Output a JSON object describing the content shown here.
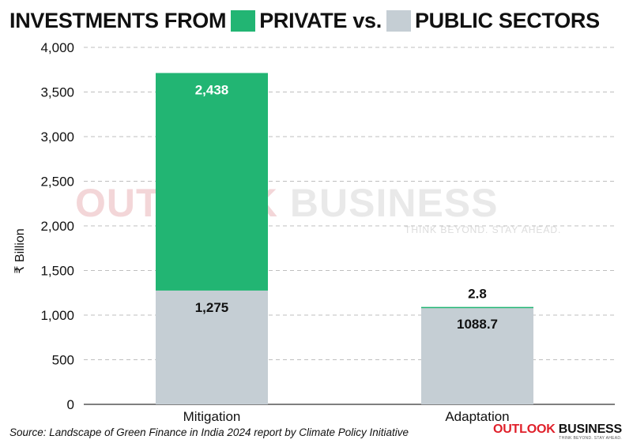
{
  "title": {
    "part1": "INVESTMENTS FROM",
    "part2": "PRIVATE vs.",
    "part3": "PUBLIC SECTORS"
  },
  "colors": {
    "private": "#22b573",
    "public": "#c5ced4",
    "text": "#111111",
    "grid": "#bfbfbf",
    "brand_red": "#e0202a"
  },
  "chart_data": {
    "type": "bar",
    "stacked": true,
    "categories": [
      "Mitigation",
      "Adaptation"
    ],
    "series": [
      {
        "color": "#c5ced4",
        "values": [
          1275,
          1088.7
        ],
        "labels": [
          "1,275",
          "1088.7"
        ]
      },
      {
        "color": "#22b573",
        "values": [
          2438,
          2.8
        ],
        "labels": [
          "2,438",
          "2.8"
        ]
      }
    ],
    "ylabel": "₹ Billion",
    "xlabel": "",
    "ylim": [
      0,
      4000
    ],
    "yticks": [
      0,
      500,
      1000,
      1500,
      2000,
      2500,
      3000,
      3500,
      4000
    ],
    "ytick_labels": [
      "0",
      "500",
      "1,000",
      "1,500",
      "2,000",
      "2,500",
      "3,000",
      "3,500",
      "4,000"
    ],
    "grid": true
  },
  "source": "Source: Landscape of Green Finance in India 2024 report by Climate Policy Initiative",
  "brand": {
    "part1": "OUTLOOK",
    "part2": "BUSINESS",
    "tagline": "THINK BEYOND. STAY AHEAD."
  },
  "watermark": {
    "part1": "OUTLOOK",
    "part2": "BUSINESS",
    "tagline": "THINK BEYOND. STAY AHEAD."
  }
}
